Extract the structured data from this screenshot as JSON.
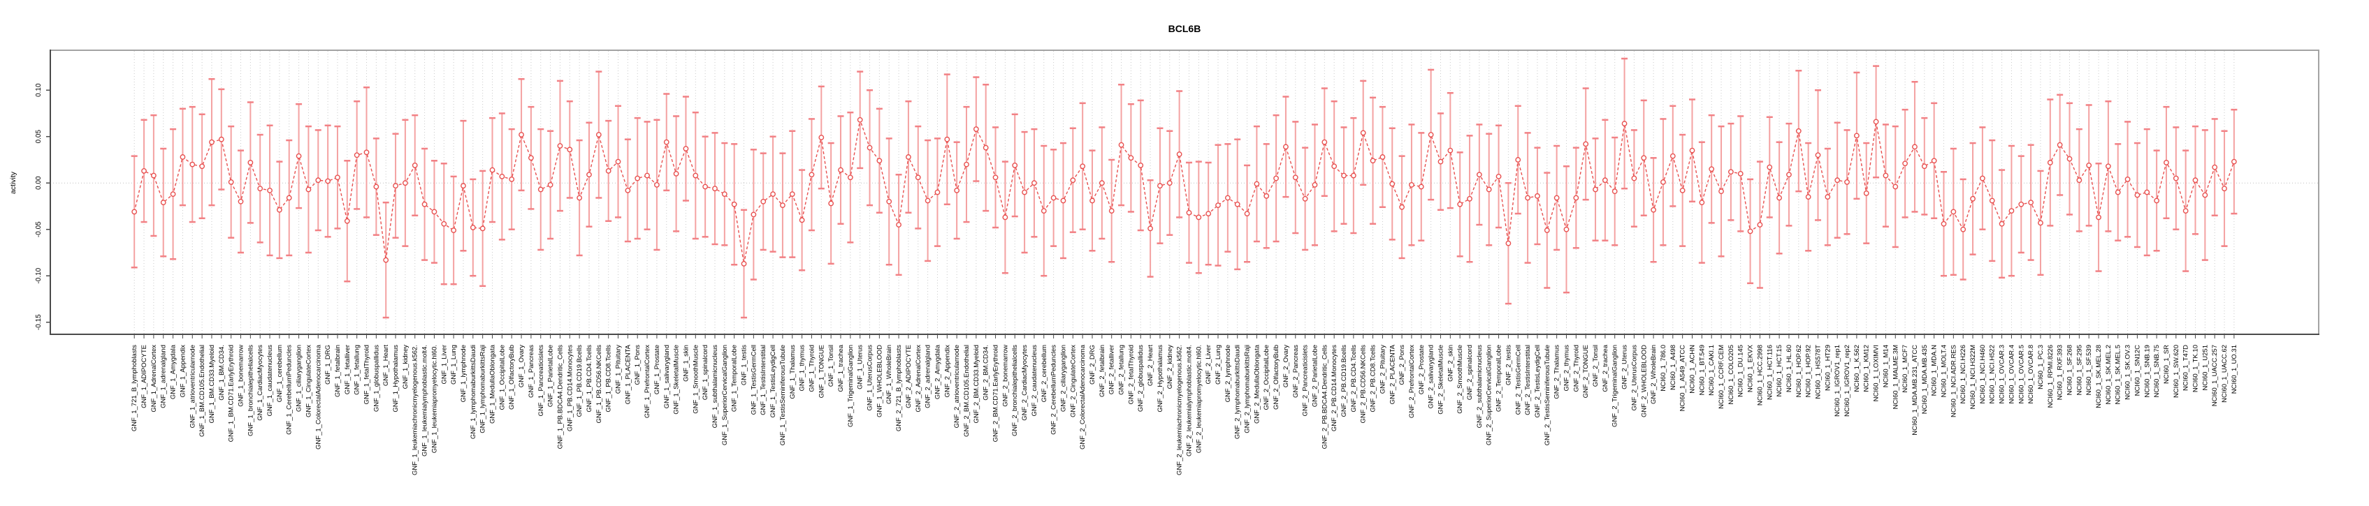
{
  "page": {
    "background": "#ffffff"
  },
  "chart_data": {
    "type": "line",
    "title": "BCL6B",
    "ylabel": "activity",
    "xlabel": "",
    "legend": "none",
    "marker": "open-circle",
    "line_style": "dashed",
    "error_bars": true,
    "grid": "vertical dotted line per category; dotted horizontal line at y=0",
    "ylim": [
      -0.163,
      0.143
    ],
    "y_ticks": [
      "0.10",
      "0.05",
      "0.00",
      "-0.05",
      "-0.10",
      "-0.15"
    ],
    "colors": {
      "point": "#e8504f",
      "connector": "#e8504f",
      "error_bar_cap": "#f28185",
      "error_bar_stem": "#f4a2a2",
      "grid": "#c9c9c9",
      "zero_line": "#bdbdbd",
      "axis_dark": "#4a4a4a",
      "frame_gray": "#a3a3a3",
      "text": "#000000"
    },
    "categories": [
      "GNF_1_721_B_lymphoblasts",
      "GNF_1_ADIPOCYTE",
      "GNF_1_AdrenalCortex",
      "GNF_1_adrenalgland",
      "GNF_1_Amygdala",
      "GNF_1_Appendix",
      "GNF_1_atrioventricularnode",
      "GNF_1_BM.CD105.Endothelial",
      "GNF_1_BM.CD33.Myeloid",
      "GNF_1_BM.CD34.",
      "GNF_1_BM.CD71.EarlyErythroid",
      "GNF_1_bonemarrow",
      "GNF_1_bronchialepithelialcells",
      "GNF_1_CardiacMyocytes",
      "GNF_1_caudatenucleus",
      "GNF_1_cerebellum",
      "GNF_1_CerebellumPeduncles",
      "GNF_1_ciliaryganglion",
      "GNF_1_CingulateCortex",
      "GNF_1_ColorectalAdenocarcinoma",
      "GNF_1_DRG",
      "GNF_1_fetalbrain",
      "GNF_1_fetalliver",
      "GNF_1_fetallung",
      "GNF_1_fetalThyroid",
      "GNF_1_globuspallidus",
      "GNF_1_Heart",
      "GNF_1_Hypothalamus",
      "GNF_1_kidney",
      "GNF_1_leukemiachronicmyelogenous.k562.",
      "GNF_1_leukemialymphoblastic.molt4.",
      "GNF_1_leukemiapromyelocytic.hl60.",
      "GNF_1_Liver",
      "GNF_1_Lung",
      "GNF_1_lymphnode",
      "GNF_1_lymphomaburkittsDaudi",
      "GNF_1_lymphomaburkittsRaji",
      "GNF_1_MedullaOblongata",
      "GNF_1_OccipitalLobe",
      "GNF_1_OlfactoryBulb",
      "GNF_1_Ovary",
      "GNF_1_Pancreas",
      "GNF_1_Pancreaticislets",
      "GNF_1_ParietalLobe",
      "GNF_1_PB.BDCA4.Dendritic_Cells",
      "GNF_1_PB.CD14.Monocytes",
      "GNF_1_PB.CD19.Bcells",
      "GNF_1_PB.CD4.Tcells",
      "GNF_1_PB.CD56.NKCells",
      "GNF_1_PB.CD8.Tcells",
      "GNF_1_Pituitary",
      "GNF_1_PLACENTA",
      "GNF_1_Pons",
      "GNF_1_PrefrontalCortex",
      "GNF_1_Prostate",
      "GNF_1_salivarygland",
      "GNF_1_SkeletalMuscle",
      "GNF_1_skin",
      "GNF_1_SmoothMuscle",
      "GNF_1_spinalcord",
      "GNF_1_subthalamicnucleus",
      "GNF_1_SuperiorCervicalGanglion",
      "GNF_1_TemporalLobe",
      "GNF_1_testis",
      "GNF_1_TestisGermCell",
      "GNF_1_TestisInterstitial",
      "GNF_1_TestisLeydigCell",
      "GNF_1_TestisSeminiferousTubule",
      "GNF_1_Thalamus",
      "GNF_1_thymus",
      "GNF_1_Thyroid",
      "GNF_1_TONGUE",
      "GNF_1_Tonsil",
      "GNF_1_trachea",
      "GNF_1_TrigeminalGanglion",
      "GNF_1_Uterus",
      "GNF_1_UterusCorpus",
      "GNF_1_WHOLEBLOOD",
      "GNF_1_WholeBrain",
      "GNF_2_721_B_lymphoblasts",
      "GNF_2_ADIPOCYTE",
      "GNF_2_AdrenalCortex",
      "GNF_2_adrenalgland",
      "GNF_2_Amygdala",
      "GNF_2_Appendix",
      "GNF_2_atrioventricularnode",
      "GNF_2_BM.CD105.Endothelial",
      "GNF_2_BM.CD33.Myeloid",
      "GNF_2_BM.CD34.",
      "GNF_2_BM.CD71.EarlyErythroid",
      "GNF_2_bonemarrow",
      "GNF_2_bronchialepithelialcells",
      "GNF_2_CardiacMyocytes",
      "GNF_2_caudatenucleus",
      "GNF_2_cerebellum",
      "GNF_2_CerebellumPeduncles",
      "GNF_2_ciliaryganglion",
      "GNF_2_CingulateCortex",
      "GNF_2_ColorectalAdenocarcinoma",
      "GNF_2_DRG",
      "GNF_2_fetalbrain",
      "GNF_2_fetalliver",
      "GNF_2_fetallung",
      "GNF_2_fetalThyroid",
      "GNF_2_globuspallidus",
      "GNF_2_Heart",
      "GNF_2_Hypothalamus",
      "GNF_2_kidney",
      "GNF_2_leukemiachronicmyelogenous.k562.",
      "GNF_2_leukemialymphoblastic.molt4.",
      "GNF_2_leukemiapromyelocytic.hl60.",
      "GNF_2_Liver",
      "GNF_2_Lung",
      "GNF_2_lymphnode",
      "GNF_2_lymphomaburkittsDaudi",
      "GNF_2_lymphomaburkittsRaji",
      "GNF_2_MedullaOblongata",
      "GNF_2_OccipitalLobe",
      "GNF_2_OlfactoryBulb",
      "GNF_2_Ovary",
      "GNF_2_Pancreas",
      "GNF_2_Pancreaticislets",
      "GNF_2_ParietalLobe",
      "GNF_2_PB.BDCA4.Dendritic_Cells",
      "GNF_2_PB.CD14.Monocytes",
      "GNF_2_PB.CD19.Bcells",
      "GNF_2_PB.CD4.Tcells",
      "GNF_2_PB.CD56.NKCells",
      "GNF_2_PB.CD8.Tcells",
      "GNF_2_Pituitary",
      "GNF_2_PLACENTA",
      "GNF_2_Pons",
      "GNF_2_PrefrontalCortex",
      "GNF_2_Prostate",
      "GNF_2_salivarygland",
      "GNF_2_SkeletalMuscle",
      "GNF_2_skin",
      "GNF_2_SmoothMuscle",
      "GNF_2_spinalcord",
      "GNF_2_subthalamicnucleus",
      "GNF_2_SuperiorCervicalGanglion",
      "GNF_2_TemporalLobe",
      "GNF_2_testis",
      "GNF_2_TestisGermCell",
      "GNF_2_TestisInterstitial",
      "GNF_2_TestisLeydigCell",
      "GNF_2_TestisSeminiferousTubule",
      "GNF_2_Thalamus",
      "GNF_2_thymus",
      "GNF_2_Thyroid",
      "GNF_2_TONGUE",
      "GNF_2_Tonsil",
      "GNF_2_trachea",
      "GNF_2_TrigeminalGanglion",
      "GNF_2_Uterus",
      "GNF_2_UterusCorpus",
      "GNF_2_WHOLEBLOOD",
      "GNF_2_WholeBrain",
      "NCI60_1_786.0",
      "NCI60_1_A498",
      "NCI60_1_A549_ATCC",
      "NCI60_1_ACHN",
      "NCI60_1_BT.549",
      "NCI60_1_CAKI.1",
      "NCI60_1_CCRF.CEM",
      "NCI60_1_COLO205",
      "NCI60_1_DU.145",
      "NCI60_1_EKVX",
      "NCI60_1_HCC.2998",
      "NCI60_1_HCT.116",
      "NCI60_1_HCT.15",
      "NCI60_1_HL.60",
      "NCI60_1_HOP.62",
      "NCI60_1_HOP.92",
      "NCI60_1_HS578T",
      "NCI60_1_HT29",
      "NCI60_1_IGROV1_rep1",
      "NCI60_1_IGROV1_rep2",
      "NCI60_1_K.562",
      "NCI60_1_KM12",
      "NCI60_1_LOXIMVI",
      "NCI60_1_M14",
      "NCI60_1_MALME.3M",
      "NCI60_1_MCF7",
      "NCI60_1_MDA.MB.231_ATCC",
      "NCI60_1_MDA.MB.435",
      "NCI60_1_MDA.N",
      "NCI60_1_MOLT.4",
      "NCI60_1_NCI.ADR.RES",
      "NCI60_1_NCI.H226",
      "NCI60_1_NCI.H322M",
      "NCI60_1_NCI.H460",
      "NCI60_1_NCI.H522",
      "NCI60_1_OVCAR.3",
      "NCI60_1_OVCAR.4",
      "NCI60_1_OVCAR.5",
      "NCI60_1_OVCAR.8",
      "NCI60_1_PC.3",
      "NCI60_1_RPMI.8226",
      "NCI60_1_RXF.393",
      "NCI60_1_SF.268",
      "NCI60_1_SF.295",
      "NCI60_1_SF.539",
      "NCI60_1_SK.MEL.28",
      "NCI60_1_SK.MEL.2",
      "NCI60_1_SK.MEL.5",
      "NCI60_1_SK.OV.3",
      "NCI60_1_SN12C",
      "NCI60_1_SNB.19",
      "NCI60_1_SNB.75",
      "NCI60_1_SR",
      "NCI60_1_SW.620",
      "NCI60_1_T47D",
      "NCI60_1_TK.10",
      "NCI60_1_U251",
      "NCI60_1_UACC.257",
      "NCI60_1_UACC.62",
      "NCI60_1_UO.31"
    ],
    "values": [
      -0.031,
      0.013,
      0.008,
      -0.021,
      -0.012,
      0.028,
      0.02,
      0.018,
      0.044,
      0.047,
      0.001,
      -0.02,
      0.022,
      -0.006,
      -0.008,
      -0.029,
      -0.016,
      0.029,
      -0.007,
      0.003,
      0.002,
      0.006,
      -0.041,
      0.03,
      0.033,
      -0.004,
      -0.083,
      -0.003,
      0.0,
      0.019,
      -0.023,
      -0.031,
      -0.044,
      -0.051,
      -0.003,
      -0.048,
      -0.049,
      0.014,
      0.007,
      0.004,
      0.052,
      0.027,
      -0.007,
      -0.002,
      0.04,
      0.036,
      -0.016,
      0.009,
      0.052,
      0.013,
      0.023,
      -0.008,
      0.005,
      0.008,
      -0.002,
      0.044,
      0.01,
      0.037,
      0.008,
      -0.004,
      -0.006,
      -0.012,
      -0.023,
      -0.087,
      -0.034,
      -0.02,
      -0.012,
      -0.024,
      -0.012,
      -0.04,
      0.009,
      0.049,
      -0.022,
      0.014,
      0.006,
      0.068,
      0.038,
      0.024,
      -0.02,
      -0.045,
      0.028,
      0.006,
      -0.019,
      -0.01,
      0.047,
      -0.008,
      0.02,
      0.058,
      0.038,
      0.006,
      -0.037,
      0.019,
      -0.01,
      0.0,
      -0.03,
      -0.016,
      -0.019,
      0.003,
      0.018,
      -0.019,
      0.0,
      -0.03,
      0.041,
      0.027,
      0.019,
      -0.049,
      -0.003,
      0.0,
      0.031,
      -0.032,
      -0.037,
      -0.033,
      -0.024,
      -0.016,
      -0.023,
      -0.033,
      -0.001,
      -0.014,
      0.005,
      0.039,
      0.006,
      -0.017,
      -0.002,
      0.044,
      0.018,
      0.008,
      0.008,
      0.054,
      0.024,
      0.028,
      -0.001,
      -0.026,
      -0.002,
      -0.004,
      0.052,
      0.023,
      0.035,
      -0.023,
      -0.017,
      0.009,
      -0.007,
      0.007,
      -0.065,
      0.025,
      -0.016,
      -0.014,
      -0.051,
      -0.016,
      -0.05,
      -0.016,
      0.042,
      -0.007,
      0.003,
      -0.009,
      0.064,
      0.005,
      0.027,
      -0.029,
      0.001,
      0.029,
      -0.008,
      0.035,
      -0.021,
      0.015,
      -0.009,
      0.012,
      0.01,
      -0.052,
      -0.045,
      0.017,
      -0.016,
      0.009,
      0.056,
      -0.015,
      0.03,
      -0.015,
      0.003,
      0.001,
      0.051,
      -0.011,
      0.066,
      0.008,
      -0.004,
      0.021,
      0.039,
      0.018,
      0.024,
      -0.044,
      -0.031,
      -0.05,
      -0.017,
      0.005,
      -0.019,
      -0.044,
      -0.03,
      -0.023,
      -0.021,
      -0.043,
      0.022,
      0.041,
      0.026,
      0.003,
      0.019,
      -0.037,
      0.018,
      -0.01,
      0.004,
      -0.013,
      -0.01,
      -0.019,
      0.022,
      0.005,
      -0.03,
      0.003,
      -0.013,
      0.017,
      -0.006,
      0.023
    ],
    "ci_halfwidth": [
      0.06,
      0.055,
      0.065,
      0.058,
      0.07,
      0.052,
      0.062,
      0.056,
      0.068,
      0.054,
      0.06,
      0.055,
      0.065,
      0.058,
      0.07,
      0.052,
      0.062,
      0.056,
      0.068,
      0.054,
      0.06,
      0.055,
      0.065,
      0.058,
      0.07,
      0.052,
      0.062,
      0.056,
      0.068,
      0.054,
      0.06,
      0.055,
      0.065,
      0.058,
      0.07,
      0.052,
      0.062,
      0.056,
      0.068,
      0.054,
      0.06,
      0.055,
      0.065,
      0.058,
      0.07,
      0.052,
      0.062,
      0.056,
      0.068,
      0.054,
      0.06,
      0.055,
      0.065,
      0.058,
      0.07,
      0.052,
      0.062,
      0.056,
      0.068,
      0.054,
      0.06,
      0.055,
      0.065,
      0.058,
      0.07,
      0.052,
      0.062,
      0.056,
      0.068,
      0.054,
      0.06,
      0.055,
      0.065,
      0.058,
      0.07,
      0.052,
      0.062,
      0.056,
      0.068,
      0.054,
      0.06,
      0.055,
      0.065,
      0.058,
      0.07,
      0.052,
      0.062,
      0.056,
      0.068,
      0.054,
      0.06,
      0.055,
      0.065,
      0.058,
      0.07,
      0.052,
      0.062,
      0.056,
      0.068,
      0.054,
      0.06,
      0.055,
      0.065,
      0.058,
      0.07,
      0.052,
      0.062,
      0.056,
      0.068,
      0.054,
      0.06,
      0.055,
      0.065,
      0.058,
      0.07,
      0.052,
      0.062,
      0.056,
      0.068,
      0.054,
      0.06,
      0.055,
      0.065,
      0.058,
      0.07,
      0.052,
      0.062,
      0.056,
      0.068,
      0.054,
      0.06,
      0.055,
      0.065,
      0.058,
      0.07,
      0.052,
      0.062,
      0.056,
      0.068,
      0.054,
      0.06,
      0.055,
      0.065,
      0.058,
      0.07,
      0.052,
      0.062,
      0.056,
      0.068,
      0.054,
      0.06,
      0.055,
      0.065,
      0.058,
      0.07,
      0.052,
      0.062,
      0.056,
      0.068,
      0.054,
      0.06,
      0.055,
      0.065,
      0.058,
      0.07,
      0.052,
      0.062,
      0.056,
      0.068,
      0.054,
      0.06,
      0.055,
      0.065,
      0.058,
      0.07,
      0.052,
      0.062,
      0.056,
      0.068,
      0.054,
      0.06,
      0.055,
      0.065,
      0.058,
      0.07,
      0.052,
      0.062,
      0.056,
      0.068,
      0.054,
      0.06,
      0.055,
      0.065,
      0.058,
      0.07,
      0.052,
      0.062,
      0.056,
      0.068,
      0.054,
      0.06,
      0.055,
      0.065,
      0.058,
      0.07,
      0.052,
      0.062,
      0.056,
      0.068,
      0.054,
      0.06,
      0.055,
      0.065,
      0.058,
      0.07,
      0.052,
      0.062,
      0.056
    ]
  }
}
